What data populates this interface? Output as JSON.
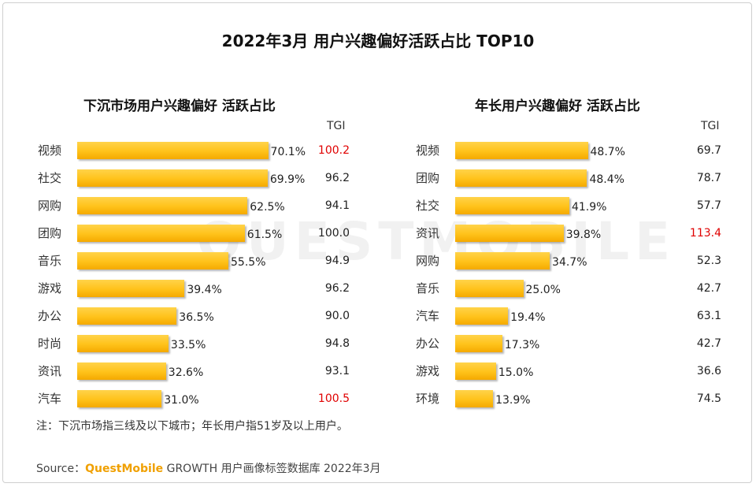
{
  "title": "2022年3月 用户兴趣偏好活跃占比 TOP10",
  "watermark": "QUESTMOBILE",
  "tgi_label": "TGI",
  "chart_data": [
    {
      "type": "bar",
      "orientation": "horizontal",
      "title": "下沉市场用户兴趣偏好 活跃占比",
      "categories": [
        "视频",
        "社交",
        "网购",
        "团购",
        "音乐",
        "游戏",
        "办公",
        "时尚",
        "资讯",
        "汽车"
      ],
      "values": [
        70.1,
        69.9,
        62.5,
        61.5,
        55.5,
        39.4,
        36.5,
        33.5,
        32.6,
        31.0
      ],
      "value_labels": [
        "70.1%",
        "69.9%",
        "62.5%",
        "61.5%",
        "55.5%",
        "39.4%",
        "36.5%",
        "33.5%",
        "32.6%",
        "31.0%"
      ],
      "tgi": [
        "100.2",
        "96.2",
        "94.1",
        "100.0",
        "94.9",
        "96.2",
        "90.0",
        "94.8",
        "93.1",
        "100.5"
      ],
      "tgi_highlight": [
        true,
        false,
        false,
        false,
        false,
        false,
        false,
        false,
        false,
        true
      ],
      "bar_color": "#ffc21a",
      "highlight_color": "#e00000"
    },
    {
      "type": "bar",
      "orientation": "horizontal",
      "title": "年长用户兴趣偏好 活跃占比",
      "categories": [
        "视频",
        "团购",
        "社交",
        "资讯",
        "网购",
        "音乐",
        "汽车",
        "办公",
        "游戏",
        "环境"
      ],
      "values": [
        48.7,
        48.4,
        41.9,
        39.8,
        34.7,
        25.0,
        19.4,
        17.3,
        15.0,
        13.9
      ],
      "value_labels": [
        "48.7%",
        "48.4%",
        "41.9%",
        "39.8%",
        "34.7%",
        "25.0%",
        "19.4%",
        "17.3%",
        "15.0%",
        "13.9%"
      ],
      "tgi": [
        "69.7",
        "78.7",
        "57.7",
        "113.4",
        "52.3",
        "42.7",
        "63.1",
        "42.7",
        "36.6",
        "74.5"
      ],
      "tgi_highlight": [
        false,
        false,
        false,
        true,
        false,
        false,
        false,
        false,
        false,
        false
      ],
      "bar_color": "#ffc21a",
      "highlight_color": "#e00000"
    }
  ],
  "note": "注：下沉市场指三线及以下城市；年长用户指51岁及以上用户。",
  "source": {
    "prefix": "Source：",
    "brand": "QuestMobile",
    "suffix": " GROWTH 用户画像标签数据库 2022年3月"
  }
}
